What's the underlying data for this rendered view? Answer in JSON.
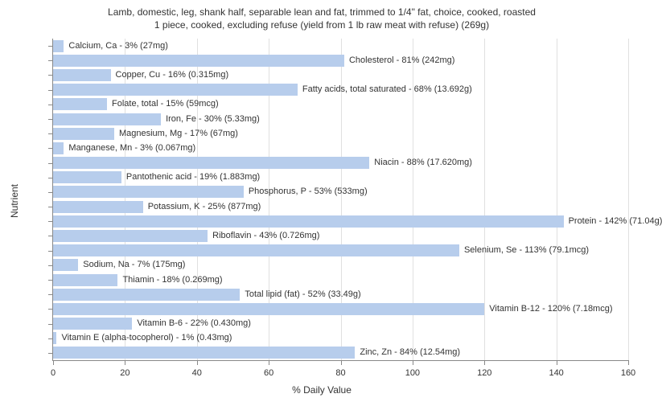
{
  "chart": {
    "type": "bar-horizontal",
    "title_line1": "Lamb, domestic, leg, shank half, separable lean and fat, trimmed to 1/4\" fat, choice, cooked, roasted",
    "title_line2": "1 piece, cooked, excluding refuse (yield from 1 lb raw meat with refuse) (269g)",
    "x_axis_title": "% Daily Value",
    "y_axis_title": "Nutrient",
    "x_min": 0,
    "x_max": 160,
    "x_tick_step": 20,
    "bar_color": "#b7cdec",
    "grid_color": "#e0e0e0",
    "axis_color": "#888888",
    "text_color": "#333333",
    "background_color": "#ffffff",
    "title_fontsize": 12,
    "label_fontsize": 11,
    "nutrients": [
      {
        "label": "Calcium, Ca - 3% (27mg)",
        "value": 3
      },
      {
        "label": "Cholesterol - 81% (242mg)",
        "value": 81
      },
      {
        "label": "Copper, Cu - 16% (0.315mg)",
        "value": 16
      },
      {
        "label": "Fatty acids, total saturated - 68% (13.692g)",
        "value": 68
      },
      {
        "label": "Folate, total - 15% (59mcg)",
        "value": 15
      },
      {
        "label": "Iron, Fe - 30% (5.33mg)",
        "value": 30
      },
      {
        "label": "Magnesium, Mg - 17% (67mg)",
        "value": 17
      },
      {
        "label": "Manganese, Mn - 3% (0.067mg)",
        "value": 3
      },
      {
        "label": "Niacin - 88% (17.620mg)",
        "value": 88
      },
      {
        "label": "Pantothenic acid - 19% (1.883mg)",
        "value": 19
      },
      {
        "label": "Phosphorus, P - 53% (533mg)",
        "value": 53
      },
      {
        "label": "Potassium, K - 25% (877mg)",
        "value": 25
      },
      {
        "label": "Protein - 142% (71.04g)",
        "value": 142
      },
      {
        "label": "Riboflavin - 43% (0.726mg)",
        "value": 43
      },
      {
        "label": "Selenium, Se - 113% (79.1mcg)",
        "value": 113
      },
      {
        "label": "Sodium, Na - 7% (175mg)",
        "value": 7
      },
      {
        "label": "Thiamin - 18% (0.269mg)",
        "value": 18
      },
      {
        "label": "Total lipid (fat) - 52% (33.49g)",
        "value": 52
      },
      {
        "label": "Vitamin B-12 - 120% (7.18mcg)",
        "value": 120
      },
      {
        "label": "Vitamin B-6 - 22% (0.430mg)",
        "value": 22
      },
      {
        "label": "Vitamin E (alpha-tocopherol) - 1% (0.43mg)",
        "value": 1
      },
      {
        "label": "Zinc, Zn - 84% (12.54mg)",
        "value": 84
      }
    ]
  }
}
